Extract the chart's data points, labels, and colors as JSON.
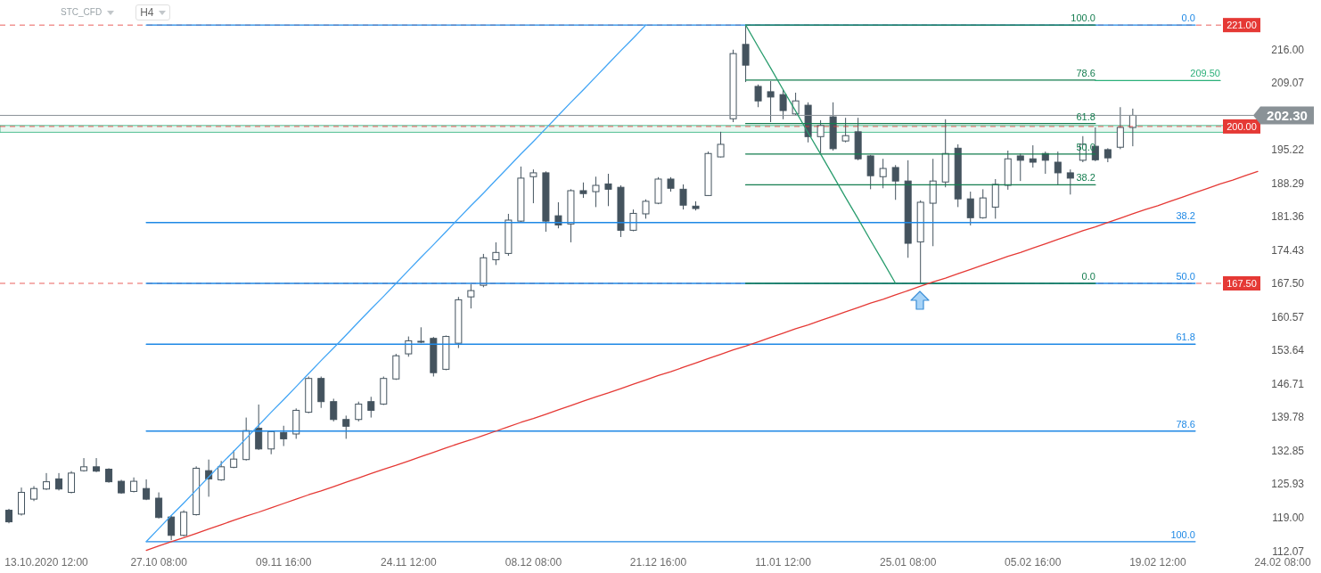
{
  "chart_data": {
    "type": "candlestick",
    "color": "#44535e",
    "annotations": [
      "STC_CFD",
      "H4"
    ],
    "categories": [
      null,
      null,
      null,
      "13.10.2020 12:00",
      null,
      null,
      null,
      null,
      null,
      null,
      null,
      null,
      "27.10 08:00",
      null,
      null,
      null,
      null,
      null,
      null,
      null,
      null,
      null,
      "09.11 16:00",
      null,
      null,
      null,
      null,
      null,
      null,
      null,
      null,
      null,
      "24.11 12:00",
      null,
      null,
      null,
      null,
      null,
      null,
      null,
      null,
      null,
      "08.12 08:00",
      null,
      null,
      null,
      null,
      null,
      null,
      null,
      null,
      null,
      "21.12 16:00",
      null,
      null,
      null,
      null,
      null,
      null,
      null,
      null,
      null,
      "11.01 12:00",
      null,
      null,
      null,
      null,
      null,
      null,
      null,
      null,
      null,
      "25.01 08:00",
      null,
      null,
      null,
      null,
      null,
      null,
      null,
      null,
      null,
      "05.02 16:00",
      null,
      null,
      null,
      null,
      null,
      null,
      null,
      null,
      null,
      "19.02 12:00",
      null,
      null,
      null,
      null,
      null,
      null,
      null,
      null,
      null,
      "24.02 08:00",
      null,
      null
    ],
    "ohlc": [
      [
        120.5,
        120.8,
        117.8,
        118.1
      ],
      [
        119.7,
        125.2,
        119.4,
        124.2
      ],
      [
        122.8,
        125.5,
        122.4,
        125.0
      ],
      [
        124.9,
        128.2,
        124.7,
        126.4
      ],
      [
        127.0,
        128.2,
        124.6,
        124.9
      ],
      [
        124.2,
        128.6,
        124.0,
        128.2
      ],
      [
        128.7,
        131.3,
        128.5,
        129.5
      ],
      [
        129.5,
        131.3,
        128.4,
        128.6
      ],
      [
        129.0,
        129.2,
        126.2,
        126.4
      ],
      [
        126.5,
        126.8,
        123.9,
        124.1
      ],
      [
        124.4,
        127.3,
        124.2,
        126.5
      ],
      [
        125.0,
        126.9,
        122.6,
        122.8
      ],
      [
        123.0,
        124.2,
        118.8,
        119.0
      ],
      [
        119.1,
        119.4,
        114.3,
        115.3
      ],
      [
        115.3,
        120.5,
        115.1,
        120.1
      ],
      [
        119.6,
        129.6,
        119.4,
        129.2
      ],
      [
        128.7,
        131.0,
        123.3,
        127.0
      ],
      [
        126.8,
        130.7,
        126.6,
        129.5
      ],
      [
        129.4,
        132.9,
        129.2,
        131.1
      ],
      [
        131.0,
        139.7,
        130.8,
        137.0
      ],
      [
        137.5,
        142.4,
        133.0,
        133.2
      ],
      [
        133.2,
        136.9,
        132.1,
        136.8
      ],
      [
        136.6,
        138.0,
        133.8,
        135.3
      ],
      [
        136.3,
        141.6,
        135.3,
        141.2
      ],
      [
        140.8,
        148.2,
        140.6,
        147.8
      ],
      [
        147.8,
        148.2,
        141.7,
        143.0
      ],
      [
        143.0,
        143.6,
        138.9,
        139.3
      ],
      [
        139.3,
        140.1,
        135.3,
        137.9
      ],
      [
        139.3,
        143.0,
        138.9,
        142.5
      ],
      [
        143.0,
        144.0,
        139.7,
        141.2
      ],
      [
        142.5,
        148.2,
        142.3,
        147.8
      ],
      [
        147.7,
        152.9,
        147.5,
        152.5
      ],
      [
        152.9,
        156.5,
        152.3,
        155.6
      ],
      [
        155.4,
        158.4,
        155.1,
        155.5
      ],
      [
        156.1,
        156.4,
        148.2,
        149.0
      ],
      [
        149.7,
        156.7,
        149.5,
        156.5
      ],
      [
        155.1,
        164.7,
        154.1,
        164.1
      ],
      [
        164.7,
        167.3,
        162.3,
        166.0
      ],
      [
        167.1,
        173.6,
        166.7,
        172.8
      ],
      [
        172.4,
        176.0,
        171.3,
        173.9
      ],
      [
        173.7,
        181.9,
        173.2,
        180.6
      ],
      [
        180.4,
        191.7,
        180.2,
        189.3
      ],
      [
        189.6,
        191.1,
        184.1,
        190.4
      ],
      [
        190.4,
        190.7,
        178.2,
        180.4
      ],
      [
        181.5,
        184.3,
        178.9,
        179.6
      ],
      [
        179.8,
        187.0,
        176.0,
        186.7
      ],
      [
        186.7,
        188.4,
        185.2,
        186.1
      ],
      [
        186.5,
        189.6,
        183.3,
        187.8
      ],
      [
        188.1,
        190.2,
        183.5,
        187.0
      ],
      [
        187.4,
        187.8,
        177.1,
        178.5
      ],
      [
        178.5,
        182.8,
        178.3,
        182.0
      ],
      [
        181.9,
        184.9,
        180.9,
        184.5
      ],
      [
        184.1,
        189.5,
        183.9,
        189.1
      ],
      [
        189.1,
        189.5,
        186.5,
        187.2
      ],
      [
        187.0,
        188.0,
        182.8,
        183.7
      ],
      [
        183.5,
        184.5,
        182.6,
        183.0
      ],
      [
        185.7,
        194.8,
        185.6,
        194.4
      ],
      [
        193.7,
        198.9,
        193.6,
        196.3
      ],
      [
        201.6,
        215.9,
        200.9,
        215.1
      ],
      [
        217.0,
        221.0,
        209.2,
        212.7
      ],
      [
        208.3,
        208.7,
        204.0,
        205.3
      ],
      [
        207.2,
        209.4,
        200.9,
        206.1
      ],
      [
        206.6,
        207.7,
        201.5,
        203.3
      ],
      [
        202.6,
        207.0,
        202.4,
        205.3
      ],
      [
        204.4,
        205.0,
        196.7,
        197.9
      ],
      [
        197.9,
        201.3,
        194.1,
        200.2
      ],
      [
        202.0,
        205.0,
        195.0,
        195.4
      ],
      [
        197.0,
        201.8,
        196.7,
        198.1
      ],
      [
        198.9,
        201.8,
        193.0,
        193.3
      ],
      [
        193.9,
        194.1,
        187.0,
        189.8
      ],
      [
        189.6,
        193.3,
        187.2,
        191.3
      ],
      [
        191.5,
        192.0,
        184.8,
        188.7
      ],
      [
        188.7,
        193.0,
        172.8,
        175.8
      ],
      [
        176.1,
        184.7,
        167.5,
        184.3
      ],
      [
        184.1,
        193.3,
        175.2,
        188.7
      ],
      [
        188.5,
        201.5,
        187.4,
        194.4
      ],
      [
        195.5,
        196.3,
        183.3,
        185.0
      ],
      [
        185.0,
        186.5,
        179.5,
        181.1
      ],
      [
        181.1,
        187.0,
        180.9,
        185.2
      ],
      [
        183.3,
        189.1,
        180.9,
        188.0
      ],
      [
        187.8,
        195.0,
        186.9,
        193.3
      ],
      [
        193.9,
        194.4,
        188.7,
        193.0
      ],
      [
        193.3,
        196.1,
        191.5,
        192.6
      ],
      [
        194.4,
        194.8,
        190.2,
        193.0
      ],
      [
        192.6,
        194.8,
        188.0,
        190.4
      ],
      [
        190.4,
        191.1,
        185.9,
        189.3
      ],
      [
        193.0,
        198.0,
        192.6,
        196.3
      ],
      [
        195.9,
        199.8,
        192.8,
        193.1
      ],
      [
        195.2,
        195.5,
        192.6,
        193.5
      ],
      [
        195.7,
        204.0,
        195.3,
        199.8
      ],
      [
        199.8,
        203.7,
        195.9,
        202.3
      ],
      null,
      null,
      null,
      null,
      null,
      null,
      null,
      null,
      null,
      null,
      null,
      null,
      null,
      null
    ],
    "series": [
      {
        "type": "line",
        "name": "0.0",
        "color": "#1e88e5",
        "values": [
          null,
          null,
          null,
          null,
          null,
          null,
          null,
          null,
          null,
          null,
          null,
          221,
          221,
          221,
          221,
          221,
          221,
          221,
          221,
          221,
          221,
          221,
          221,
          221,
          221,
          221,
          221,
          221,
          221,
          221,
          221,
          221,
          221,
          221,
          221,
          221,
          221,
          221,
          221,
          221,
          221,
          221,
          221,
          221,
          221,
          221,
          221,
          221,
          221,
          221,
          221,
          221,
          221,
          221,
          221,
          221,
          221,
          221,
          221,
          221,
          221,
          221,
          221,
          221,
          221,
          221,
          221,
          221,
          221,
          221,
          221,
          221,
          221,
          221,
          221,
          221,
          221,
          221,
          221,
          221,
          221,
          221,
          221,
          221,
          221,
          221,
          221,
          221,
          221,
          221,
          221,
          221,
          221,
          221,
          221,
          221,
          null,
          null,
          null,
          null,
          null,
          null,
          null,
          null,
          null
        ]
      },
      {
        "type": "line",
        "name": "38.2",
        "color": "#1e88e5",
        "values": [
          null,
          null,
          null,
          null,
          null,
          null,
          null,
          null,
          null,
          null,
          null,
          180.1,
          180.1,
          180.1,
          180.1,
          180.1,
          180.1,
          180.1,
          180.1,
          180.1,
          180.1,
          180.1,
          180.1,
          180.1,
          180.1,
          180.1,
          180.1,
          180.1,
          180.1,
          180.1,
          180.1,
          180.1,
          180.1,
          180.1,
          180.1,
          180.1,
          180.1,
          180.1,
          180.1,
          180.1,
          180.1,
          180.1,
          180.1,
          180.1,
          180.1,
          180.1,
          180.1,
          180.1,
          180.1,
          180.1,
          180.1,
          180.1,
          180.1,
          180.1,
          180.1,
          180.1,
          180.1,
          180.1,
          180.1,
          180.1,
          180.1,
          180.1,
          180.1,
          180.1,
          180.1,
          180.1,
          180.1,
          180.1,
          180.1,
          180.1,
          180.1,
          180.1,
          180.1,
          180.1,
          180.1,
          180.1,
          180.1,
          180.1,
          180.1,
          180.1,
          180.1,
          180.1,
          180.1,
          180.1,
          180.1,
          180.1,
          180.1,
          180.1,
          180.1,
          180.1,
          180.1,
          180.1,
          180.1,
          180.1,
          180.1,
          180.1,
          null,
          null,
          null,
          null,
          null,
          null,
          null,
          null,
          null
        ]
      },
      {
        "type": "line",
        "name": "50.0",
        "color": "#1e88e5",
        "values": [
          null,
          null,
          null,
          null,
          null,
          null,
          null,
          null,
          null,
          null,
          null,
          167.5,
          167.5,
          167.5,
          167.5,
          167.5,
          167.5,
          167.5,
          167.5,
          167.5,
          167.5,
          167.5,
          167.5,
          167.5,
          167.5,
          167.5,
          167.5,
          167.5,
          167.5,
          167.5,
          167.5,
          167.5,
          167.5,
          167.5,
          167.5,
          167.5,
          167.5,
          167.5,
          167.5,
          167.5,
          167.5,
          167.5,
          167.5,
          167.5,
          167.5,
          167.5,
          167.5,
          167.5,
          167.5,
          167.5,
          167.5,
          167.5,
          167.5,
          167.5,
          167.5,
          167.5,
          167.5,
          167.5,
          167.5,
          167.5,
          167.5,
          167.5,
          167.5,
          167.5,
          167.5,
          167.5,
          167.5,
          167.5,
          167.5,
          167.5,
          167.5,
          167.5,
          167.5,
          167.5,
          167.5,
          167.5,
          167.5,
          167.5,
          167.5,
          167.5,
          167.5,
          167.5,
          167.5,
          167.5,
          167.5,
          167.5,
          167.5,
          167.5,
          167.5,
          167.5,
          167.5,
          167.5,
          167.5,
          167.5,
          167.5,
          167.5,
          null,
          null,
          null,
          null,
          null,
          null,
          null,
          null,
          null
        ]
      },
      {
        "type": "line",
        "name": "61.8",
        "color": "#1e88e5",
        "values": [
          null,
          null,
          null,
          null,
          null,
          null,
          null,
          null,
          null,
          null,
          null,
          154.9,
          154.9,
          154.9,
          154.9,
          154.9,
          154.9,
          154.9,
          154.9,
          154.9,
          154.9,
          154.9,
          154.9,
          154.9,
          154.9,
          154.9,
          154.9,
          154.9,
          154.9,
          154.9,
          154.9,
          154.9,
          154.9,
          154.9,
          154.9,
          154.9,
          154.9,
          154.9,
          154.9,
          154.9,
          154.9,
          154.9,
          154.9,
          154.9,
          154.9,
          154.9,
          154.9,
          154.9,
          154.9,
          154.9,
          154.9,
          154.9,
          154.9,
          154.9,
          154.9,
          154.9,
          154.9,
          154.9,
          154.9,
          154.9,
          154.9,
          154.9,
          154.9,
          154.9,
          154.9,
          154.9,
          154.9,
          154.9,
          154.9,
          154.9,
          154.9,
          154.9,
          154.9,
          154.9,
          154.9,
          154.9,
          154.9,
          154.9,
          154.9,
          154.9,
          154.9,
          154.9,
          154.9,
          154.9,
          154.9,
          154.9,
          154.9,
          154.9,
          154.9,
          154.9,
          154.9,
          154.9,
          154.9,
          154.9,
          154.9,
          154.9,
          null,
          null,
          null,
          null,
          null,
          null,
          null,
          null,
          null
        ]
      },
      {
        "type": "line",
        "name": "78.6",
        "color": "#1e88e5",
        "values": [
          null,
          null,
          null,
          null,
          null,
          null,
          null,
          null,
          null,
          null,
          null,
          136.9,
          136.9,
          136.9,
          136.9,
          136.9,
          136.9,
          136.9,
          136.9,
          136.9,
          136.9,
          136.9,
          136.9,
          136.9,
          136.9,
          136.9,
          136.9,
          136.9,
          136.9,
          136.9,
          136.9,
          136.9,
          136.9,
          136.9,
          136.9,
          136.9,
          136.9,
          136.9,
          136.9,
          136.9,
          136.9,
          136.9,
          136.9,
          136.9,
          136.9,
          136.9,
          136.9,
          136.9,
          136.9,
          136.9,
          136.9,
          136.9,
          136.9,
          136.9,
          136.9,
          136.9,
          136.9,
          136.9,
          136.9,
          136.9,
          136.9,
          136.9,
          136.9,
          136.9,
          136.9,
          136.9,
          136.9,
          136.9,
          136.9,
          136.9,
          136.9,
          136.9,
          136.9,
          136.9,
          136.9,
          136.9,
          136.9,
          136.9,
          136.9,
          136.9,
          136.9,
          136.9,
          136.9,
          136.9,
          136.9,
          136.9,
          136.9,
          136.9,
          136.9,
          136.9,
          136.9,
          136.9,
          136.9,
          136.9,
          136.9,
          136.9,
          null,
          null,
          null,
          null,
          null,
          null,
          null,
          null,
          null
        ]
      },
      {
        "type": "line",
        "name": "100.0",
        "color": "#1e88e5",
        "values": [
          null,
          null,
          null,
          null,
          null,
          null,
          null,
          null,
          null,
          null,
          null,
          114.0,
          114.0,
          114.0,
          114.0,
          114.0,
          114.0,
          114.0,
          114.0,
          114.0,
          114.0,
          114.0,
          114.0,
          114.0,
          114.0,
          114.0,
          114.0,
          114.0,
          114.0,
          114.0,
          114.0,
          114.0,
          114.0,
          114.0,
          114.0,
          114.0,
          114.0,
          114.0,
          114.0,
          114.0,
          114.0,
          114.0,
          114.0,
          114.0,
          114.0,
          114.0,
          114.0,
          114.0,
          114.0,
          114.0,
          114.0,
          114.0,
          114.0,
          114.0,
          114.0,
          114.0,
          114.0,
          114.0,
          114.0,
          114.0,
          114.0,
          114.0,
          114.0,
          114.0,
          114.0,
          114.0,
          114.0,
          114.0,
          114.0,
          114.0,
          114.0,
          114.0,
          114.0,
          114.0,
          114.0,
          114.0,
          114.0,
          114.0,
          114.0,
          114.0,
          114.0,
          114.0,
          114.0,
          114.0,
          114.0,
          114.0,
          114.0,
          114.0,
          114.0,
          114.0,
          114.0,
          114.0,
          114.0,
          114.0,
          114.0,
          114.0,
          null,
          null,
          null,
          null,
          null,
          null,
          null,
          null,
          null
        ]
      },
      {
        "type": "line",
        "name": "100.0",
        "color": "#147d4f",
        "values": [
          null,
          null,
          null,
          null,
          null,
          null,
          null,
          null,
          null,
          null,
          null,
          null,
          null,
          null,
          null,
          null,
          null,
          null,
          null,
          null,
          null,
          null,
          null,
          null,
          null,
          null,
          null,
          null,
          null,
          null,
          null,
          null,
          null,
          null,
          null,
          null,
          null,
          null,
          null,
          null,
          null,
          null,
          null,
          null,
          null,
          null,
          null,
          null,
          null,
          null,
          null,
          null,
          null,
          null,
          null,
          null,
          null,
          null,
          null,
          221,
          221,
          221,
          221,
          221,
          221,
          221,
          221,
          221,
          221,
          221,
          221,
          221,
          221,
          221,
          221,
          221,
          221,
          221,
          221,
          221,
          221,
          221,
          221,
          221,
          221,
          221,
          221,
          221,
          null,
          null,
          null,
          null,
          null,
          null,
          null,
          null,
          null,
          null,
          null,
          null,
          null,
          null,
          null,
          null,
          null
        ]
      },
      {
        "type": "line",
        "name": "78.6",
        "color": "#147d4f",
        "values": [
          null,
          null,
          null,
          null,
          null,
          null,
          null,
          null,
          null,
          null,
          null,
          null,
          null,
          null,
          null,
          null,
          null,
          null,
          null,
          null,
          null,
          null,
          null,
          null,
          null,
          null,
          null,
          null,
          null,
          null,
          null,
          null,
          null,
          null,
          null,
          null,
          null,
          null,
          null,
          null,
          null,
          null,
          null,
          null,
          null,
          null,
          null,
          null,
          null,
          null,
          null,
          null,
          null,
          null,
          null,
          null,
          null,
          null,
          null,
          209.6,
          209.6,
          209.6,
          209.6,
          209.6,
          209.6,
          209.6,
          209.6,
          209.6,
          209.6,
          209.6,
          209.6,
          209.6,
          209.6,
          209.6,
          209.6,
          209.6,
          209.6,
          209.6,
          209.6,
          209.6,
          209.6,
          209.6,
          209.6,
          209.6,
          209.6,
          209.6,
          209.6,
          209.6,
          null,
          null,
          null,
          null,
          null,
          null,
          null,
          null,
          null,
          null,
          null,
          null,
          null,
          null,
          null,
          null,
          null
        ]
      },
      {
        "type": "line",
        "name": "61.8",
        "color": "#147d4f",
        "values": [
          null,
          null,
          null,
          null,
          null,
          null,
          null,
          null,
          null,
          null,
          null,
          null,
          null,
          null,
          null,
          null,
          null,
          null,
          null,
          null,
          null,
          null,
          null,
          null,
          null,
          null,
          null,
          null,
          null,
          null,
          null,
          null,
          null,
          null,
          null,
          null,
          null,
          null,
          null,
          null,
          null,
          null,
          null,
          null,
          null,
          null,
          null,
          null,
          null,
          null,
          null,
          null,
          null,
          null,
          null,
          null,
          null,
          null,
          null,
          200.6,
          200.6,
          200.6,
          200.6,
          200.6,
          200.6,
          200.6,
          200.6,
          200.6,
          200.6,
          200.6,
          200.6,
          200.6,
          200.6,
          200.6,
          200.6,
          200.6,
          200.6,
          200.6,
          200.6,
          200.6,
          200.6,
          200.6,
          200.6,
          200.6,
          200.6,
          200.6,
          200.6,
          200.6,
          null,
          null,
          null,
          null,
          null,
          null,
          null,
          null,
          null,
          null,
          null,
          null,
          null,
          null,
          null,
          null,
          null
        ]
      },
      {
        "type": "line",
        "name": "50.0",
        "color": "#147d4f",
        "values": [
          null,
          null,
          null,
          null,
          null,
          null,
          null,
          null,
          null,
          null,
          null,
          null,
          null,
          null,
          null,
          null,
          null,
          null,
          null,
          null,
          null,
          null,
          null,
          null,
          null,
          null,
          null,
          null,
          null,
          null,
          null,
          null,
          null,
          null,
          null,
          null,
          null,
          null,
          null,
          null,
          null,
          null,
          null,
          null,
          null,
          null,
          null,
          null,
          null,
          null,
          null,
          null,
          null,
          null,
          null,
          null,
          null,
          null,
          null,
          194.3,
          194.3,
          194.3,
          194.3,
          194.3,
          194.3,
          194.3,
          194.3,
          194.3,
          194.3,
          194.3,
          194.3,
          194.3,
          194.3,
          194.3,
          194.3,
          194.3,
          194.3,
          194.3,
          194.3,
          194.3,
          194.3,
          194.3,
          194.3,
          194.3,
          194.3,
          194.3,
          194.3,
          194.3,
          null,
          null,
          null,
          null,
          null,
          null,
          null,
          null,
          null,
          null,
          null,
          null,
          null,
          null,
          null,
          null,
          null
        ]
      },
      {
        "type": "line",
        "name": "38.2",
        "color": "#147d4f",
        "values": [
          null,
          null,
          null,
          null,
          null,
          null,
          null,
          null,
          null,
          null,
          null,
          null,
          null,
          null,
          null,
          null,
          null,
          null,
          null,
          null,
          null,
          null,
          null,
          null,
          null,
          null,
          null,
          null,
          null,
          null,
          null,
          null,
          null,
          null,
          null,
          null,
          null,
          null,
          null,
          null,
          null,
          null,
          null,
          null,
          null,
          null,
          null,
          null,
          null,
          null,
          null,
          null,
          null,
          null,
          null,
          null,
          null,
          null,
          null,
          187.9,
          187.9,
          187.9,
          187.9,
          187.9,
          187.9,
          187.9,
          187.9,
          187.9,
          187.9,
          187.9,
          187.9,
          187.9,
          187.9,
          187.9,
          187.9,
          187.9,
          187.9,
          187.9,
          187.9,
          187.9,
          187.9,
          187.9,
          187.9,
          187.9,
          187.9,
          187.9,
          187.9,
          187.9,
          null,
          null,
          null,
          null,
          null,
          null,
          null,
          null,
          null,
          null,
          null,
          null,
          null,
          null,
          null,
          null,
          null
        ]
      },
      {
        "type": "line",
        "name": "0.0",
        "color": "#147d4f",
        "values": [
          null,
          null,
          null,
          null,
          null,
          null,
          null,
          null,
          null,
          null,
          null,
          null,
          null,
          null,
          null,
          null,
          null,
          null,
          null,
          null,
          null,
          null,
          null,
          null,
          null,
          null,
          null,
          null,
          null,
          null,
          null,
          null,
          null,
          null,
          null,
          null,
          null,
          null,
          null,
          null,
          null,
          null,
          null,
          null,
          null,
          null,
          null,
          null,
          null,
          null,
          null,
          null,
          null,
          null,
          null,
          null,
          null,
          null,
          null,
          167.5,
          167.5,
          167.5,
          167.5,
          167.5,
          167.5,
          167.5,
          167.5,
          167.5,
          167.5,
          167.5,
          167.5,
          167.5,
          167.5,
          167.5,
          167.5,
          167.5,
          167.5,
          167.5,
          167.5,
          167.5,
          167.5,
          167.5,
          167.5,
          167.5,
          167.5,
          167.5,
          167.5,
          167.5,
          null,
          null,
          null,
          null,
          null,
          null,
          null,
          null,
          null,
          null,
          null,
          null,
          null,
          null,
          null,
          null,
          null
        ]
      },
      {
        "type": "line",
        "color": "#42a5f5",
        "values": [
          null,
          null,
          null,
          null,
          null,
          null,
          null,
          null,
          null,
          null,
          null,
          114.0,
          116.7,
          119.4,
          122.0,
          124.7,
          127.4,
          130.1,
          132.7,
          135.4,
          138.1,
          140.8,
          143.4,
          146.1,
          148.8,
          151.5,
          154.1,
          156.8,
          159.5,
          162.2,
          164.8,
          167.5,
          170.2,
          172.9,
          175.5,
          178.2,
          180.9,
          183.6,
          186.2,
          188.9,
          191.6,
          194.3,
          196.9,
          199.6,
          202.3,
          205.0,
          207.6,
          210.3,
          213.0,
          215.7,
          218.3,
          221.0,
          null,
          null,
          null,
          null,
          null,
          null,
          null,
          null,
          null,
          null,
          null,
          null,
          null,
          null,
          null,
          null,
          null,
          null,
          null,
          null,
          null,
          null,
          null,
          null,
          null,
          null,
          null,
          null,
          null,
          null,
          null,
          null,
          null,
          null,
          null,
          null,
          null,
          null,
          null,
          null,
          null,
          null,
          null,
          null,
          null,
          null,
          null,
          null,
          null,
          null,
          null,
          null,
          null
        ]
      },
      {
        "type": "line",
        "color": "#2a9d6e",
        "values": [
          null,
          null,
          null,
          null,
          null,
          null,
          null,
          null,
          null,
          null,
          null,
          null,
          null,
          null,
          null,
          null,
          null,
          null,
          null,
          null,
          null,
          null,
          null,
          null,
          null,
          null,
          null,
          null,
          null,
          null,
          null,
          null,
          null,
          null,
          null,
          null,
          null,
          null,
          null,
          null,
          null,
          null,
          null,
          null,
          null,
          null,
          null,
          null,
          null,
          null,
          null,
          null,
          null,
          null,
          null,
          null,
          null,
          null,
          null,
          221.0,
          216.5,
          212.1,
          207.6,
          203.2,
          198.7,
          194.3,
          189.8,
          185.3,
          180.9,
          176.4,
          172.0,
          167.5,
          null,
          null,
          null,
          null,
          null,
          null,
          null,
          null,
          null,
          null,
          null,
          null,
          null,
          null,
          null,
          null,
          null,
          null,
          null,
          null,
          null,
          null,
          null,
          null,
          null,
          null,
          null,
          null,
          null,
          null,
          null,
          null,
          null
        ]
      },
      {
        "type": "line",
        "color": "#e53935",
        "values": [
          null,
          null,
          null,
          null,
          null,
          null,
          null,
          null,
          null,
          null,
          null,
          112.2,
          113.1,
          114.0,
          114.8,
          115.7,
          116.6,
          117.5,
          118.4,
          119.3,
          120.1,
          121.0,
          121.9,
          122.8,
          123.7,
          124.5,
          125.4,
          126.3,
          127.2,
          128.1,
          129.0,
          129.8,
          130.7,
          131.6,
          132.5,
          133.4,
          134.3,
          135.1,
          136.0,
          136.9,
          137.8,
          138.7,
          139.5,
          140.4,
          141.3,
          142.2,
          143.1,
          144.0,
          144.8,
          145.7,
          146.6,
          147.5,
          148.4,
          149.2,
          150.1,
          151.0,
          151.9,
          152.8,
          153.7,
          154.5,
          155.4,
          156.3,
          157.2,
          158.1,
          158.9,
          159.8,
          160.7,
          161.6,
          162.5,
          163.4,
          164.2,
          165.1,
          166.0,
          166.9,
          167.8,
          168.6,
          169.5,
          170.4,
          171.3,
          172.2,
          173.1,
          173.9,
          174.8,
          175.7,
          176.6,
          177.5,
          178.4,
          179.2,
          180.1,
          181.0,
          181.9,
          182.8,
          183.6,
          184.5,
          185.4,
          186.3,
          187.2,
          188.1,
          188.9,
          189.8,
          190.7,
          null,
          null,
          null,
          null
        ]
      },
      {
        "type": "line",
        "name": "209.50",
        "color": "#2bb07a",
        "values": [
          null,
          null,
          null,
          null,
          null,
          null,
          null,
          null,
          null,
          null,
          null,
          null,
          null,
          null,
          null,
          null,
          null,
          null,
          null,
          null,
          null,
          null,
          null,
          null,
          null,
          null,
          null,
          null,
          null,
          null,
          null,
          null,
          null,
          null,
          null,
          null,
          null,
          null,
          null,
          null,
          null,
          null,
          null,
          null,
          null,
          null,
          null,
          null,
          null,
          null,
          null,
          null,
          null,
          null,
          null,
          null,
          null,
          null,
          null,
          null,
          null,
          null,
          null,
          null,
          null,
          null,
          null,
          null,
          null,
          null,
          null,
          null,
          null,
          null,
          null,
          null,
          null,
          null,
          null,
          null,
          null,
          null,
          null,
          null,
          null,
          null,
          null,
          209.5,
          209.5,
          209.5,
          209.5,
          209.5,
          209.5,
          209.5,
          209.5,
          209.5,
          209.5,
          209.5,
          null,
          null,
          null,
          null,
          null,
          null,
          null
        ]
      }
    ],
    "ylim": [
      107.5,
      226.2
    ],
    "yticks": [
      112.07,
      {
        "value": 119,
        "label": "119.00"
      },
      125.93,
      132.85,
      139.78,
      146.71,
      153.64,
      160.57,
      {
        "value": 167.5,
        "label": "167.50"
      },
      174.43,
      181.36,
      188.29,
      195.22,
      209.07,
      {
        "value": 216,
        "label": "216.00"
      }
    ],
    "ref_lines": [
      {
        "axis": "y",
        "value": 221,
        "label": "221.00",
        "color": "#e53935",
        "line_style": "dashed"
      },
      {
        "axis": "y",
        "value": 200,
        "label": "200.00",
        "color": "#e53935",
        "line_style": "dashed"
      },
      {
        "axis": "y",
        "value": 167.5,
        "label": "167.50",
        "color": "#e53935",
        "line_style": "dashed"
      },
      {
        "axis": "y",
        "value": 202.3,
        "label": "202.30",
        "color": "#8a9297",
        "line_style": "solid"
      }
    ],
    "bands": [
      {
        "axis": "y",
        "from": 198.8,
        "to": 200.2,
        "color": "#2bb07a"
      }
    ]
  }
}
